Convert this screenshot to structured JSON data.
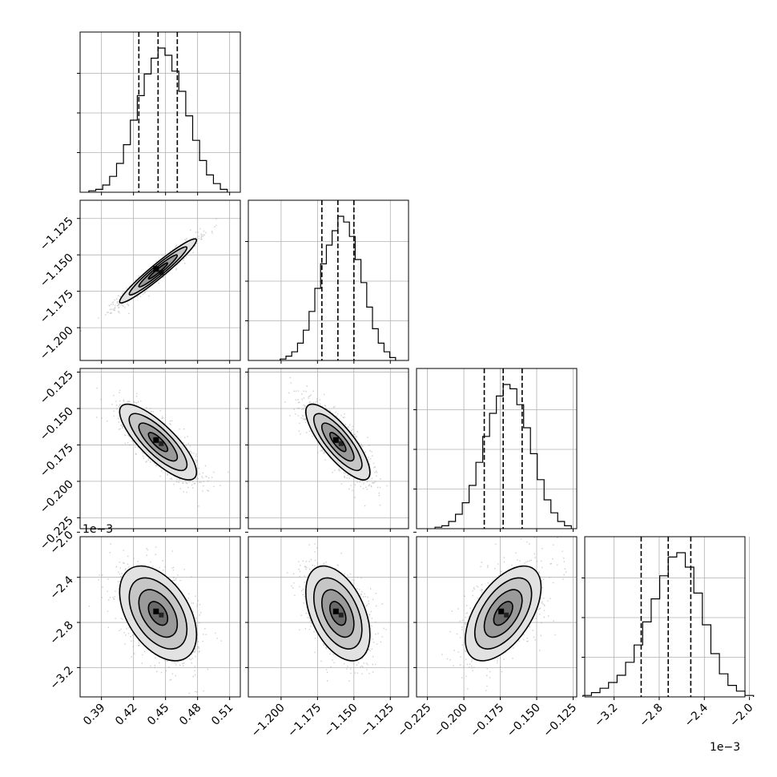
{
  "chart_data": {
    "type": "corner",
    "parameters": [
      {
        "range": [
          0.37,
          0.52
        ],
        "ticks": [
          "0.39",
          "0.42",
          "0.45",
          "0.48",
          "0.51"
        ],
        "tick_values": [
          0.39,
          0.42,
          0.45,
          0.48,
          0.51
        ],
        "quantiles": [
          0.425,
          0.443,
          0.461
        ],
        "mean": 0.443,
        "sd": 0.018
      },
      {
        "range": [
          -1.2225,
          -1.1125
        ],
        "ticks": [
          "-1.200",
          "-1.175",
          "-1.150",
          "-1.125"
        ],
        "tick_values": [
          -1.2,
          -1.175,
          -1.15,
          -1.125
        ],
        "quantiles": [
          -1.172,
          -1.161,
          -1.15
        ],
        "mean": -1.161,
        "sd": 0.011
      },
      {
        "range": [
          -0.2325,
          -0.1225
        ],
        "ticks": [
          "-0.225",
          "-0.200",
          "-0.175",
          "-0.150",
          "-0.125"
        ],
        "tick_values": [
          -0.225,
          -0.2,
          -0.175,
          -0.15,
          -0.125
        ],
        "quantiles": [
          -0.186,
          -0.173,
          -0.16
        ],
        "mean": -0.173,
        "sd": 0.013
      },
      {
        "range": [
          -3.46,
          -2.04
        ],
        "ticks": [
          "-3.2",
          "-2.8",
          "-2.4",
          "-2.0"
        ],
        "tick_values": [
          -3.2,
          -2.8,
          -2.4,
          -2.0
        ],
        "quantiles": [
          -2.96,
          -2.72,
          -2.52
        ],
        "mean": -2.72,
        "sd": 0.21
      },
      {
        "unit_multiplier": "1e−3"
      }
    ],
    "multipliers": {
      "y_row4": "1e−3",
      "x_col4": "1e−3"
    },
    "correlations": [
      {
        "i": 1,
        "j": 0,
        "rho": 0.96
      },
      {
        "i": 2,
        "j": 0,
        "rho": -0.8
      },
      {
        "i": 2,
        "j": 1,
        "rho": -0.8
      },
      {
        "i": 3,
        "j": 0,
        "rho": -0.45
      },
      {
        "i": 3,
        "j": 1,
        "rho": -0.45
      },
      {
        "i": 3,
        "j": 2,
        "rho": 0.55
      }
    ],
    "histograms": [
      {
        "param": 0,
        "bins": 20,
        "heights": [
          0.01,
          0.02,
          0.05,
          0.11,
          0.2,
          0.33,
          0.5,
          0.67,
          0.82,
          0.93,
          1.0,
          0.95,
          0.84,
          0.7,
          0.53,
          0.36,
          0.22,
          0.12,
          0.06,
          0.02
        ]
      },
      {
        "param": 1,
        "bins": 20,
        "heights": [
          0.01,
          0.03,
          0.06,
          0.12,
          0.21,
          0.34,
          0.5,
          0.67,
          0.8,
          0.9,
          1.0,
          0.96,
          0.86,
          0.7,
          0.54,
          0.37,
          0.22,
          0.12,
          0.06,
          0.02
        ]
      },
      {
        "param": 2,
        "bins": 20,
        "heights": [
          0.01,
          0.02,
          0.05,
          0.1,
          0.18,
          0.3,
          0.46,
          0.64,
          0.8,
          0.92,
          1.0,
          0.97,
          0.86,
          0.7,
          0.52,
          0.34,
          0.2,
          0.11,
          0.05,
          0.02
        ]
      },
      {
        "param": 3,
        "bins": 20,
        "heights": [
          0.01,
          0.03,
          0.06,
          0.1,
          0.15,
          0.24,
          0.36,
          0.52,
          0.68,
          0.84,
          0.97,
          1.0,
          0.9,
          0.72,
          0.5,
          0.3,
          0.16,
          0.08,
          0.04,
          0.01
        ]
      }
    ],
    "contour_levels_sigma": [
      0.5,
      1.0,
      1.5,
      2.0
    ],
    "scatter_points_per_panel": 1200,
    "quantile_line_style": "dashed",
    "grid": true,
    "line_color": "#000000",
    "point_color": "#9e9e9e"
  }
}
